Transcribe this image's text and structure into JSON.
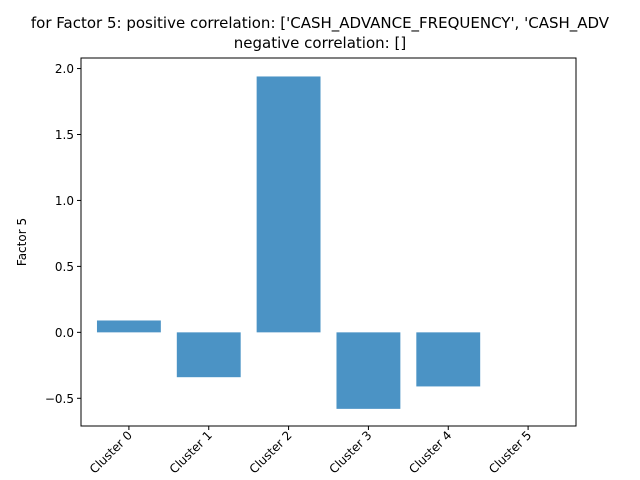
{
  "chart_data": {
    "type": "bar",
    "title_line1": "for Factor 5: positive correlation: ['CASH_ADVANCE_FREQUENCY', 'CASH_ADV",
    "title_line2": "negative correlation: []",
    "xlabel": "",
    "ylabel": "Factor 5",
    "categories": [
      "Cluster 0",
      "Cluster 1",
      "Cluster 2",
      "Cluster 3",
      "Cluster 4",
      "Cluster 5"
    ],
    "values": [
      0.09,
      -0.34,
      1.94,
      -0.58,
      -0.41,
      0.0
    ],
    "ylim": [
      -0.71,
      2.08
    ],
    "yticks": [
      -0.5,
      0.0,
      0.5,
      1.0,
      1.5,
      2.0
    ],
    "ytick_labels": [
      "−0.5",
      "0.0",
      "0.5",
      "1.0",
      "1.5",
      "2.0"
    ],
    "bar_color": "#4b93c5",
    "grid": false,
    "legend": "none"
  }
}
